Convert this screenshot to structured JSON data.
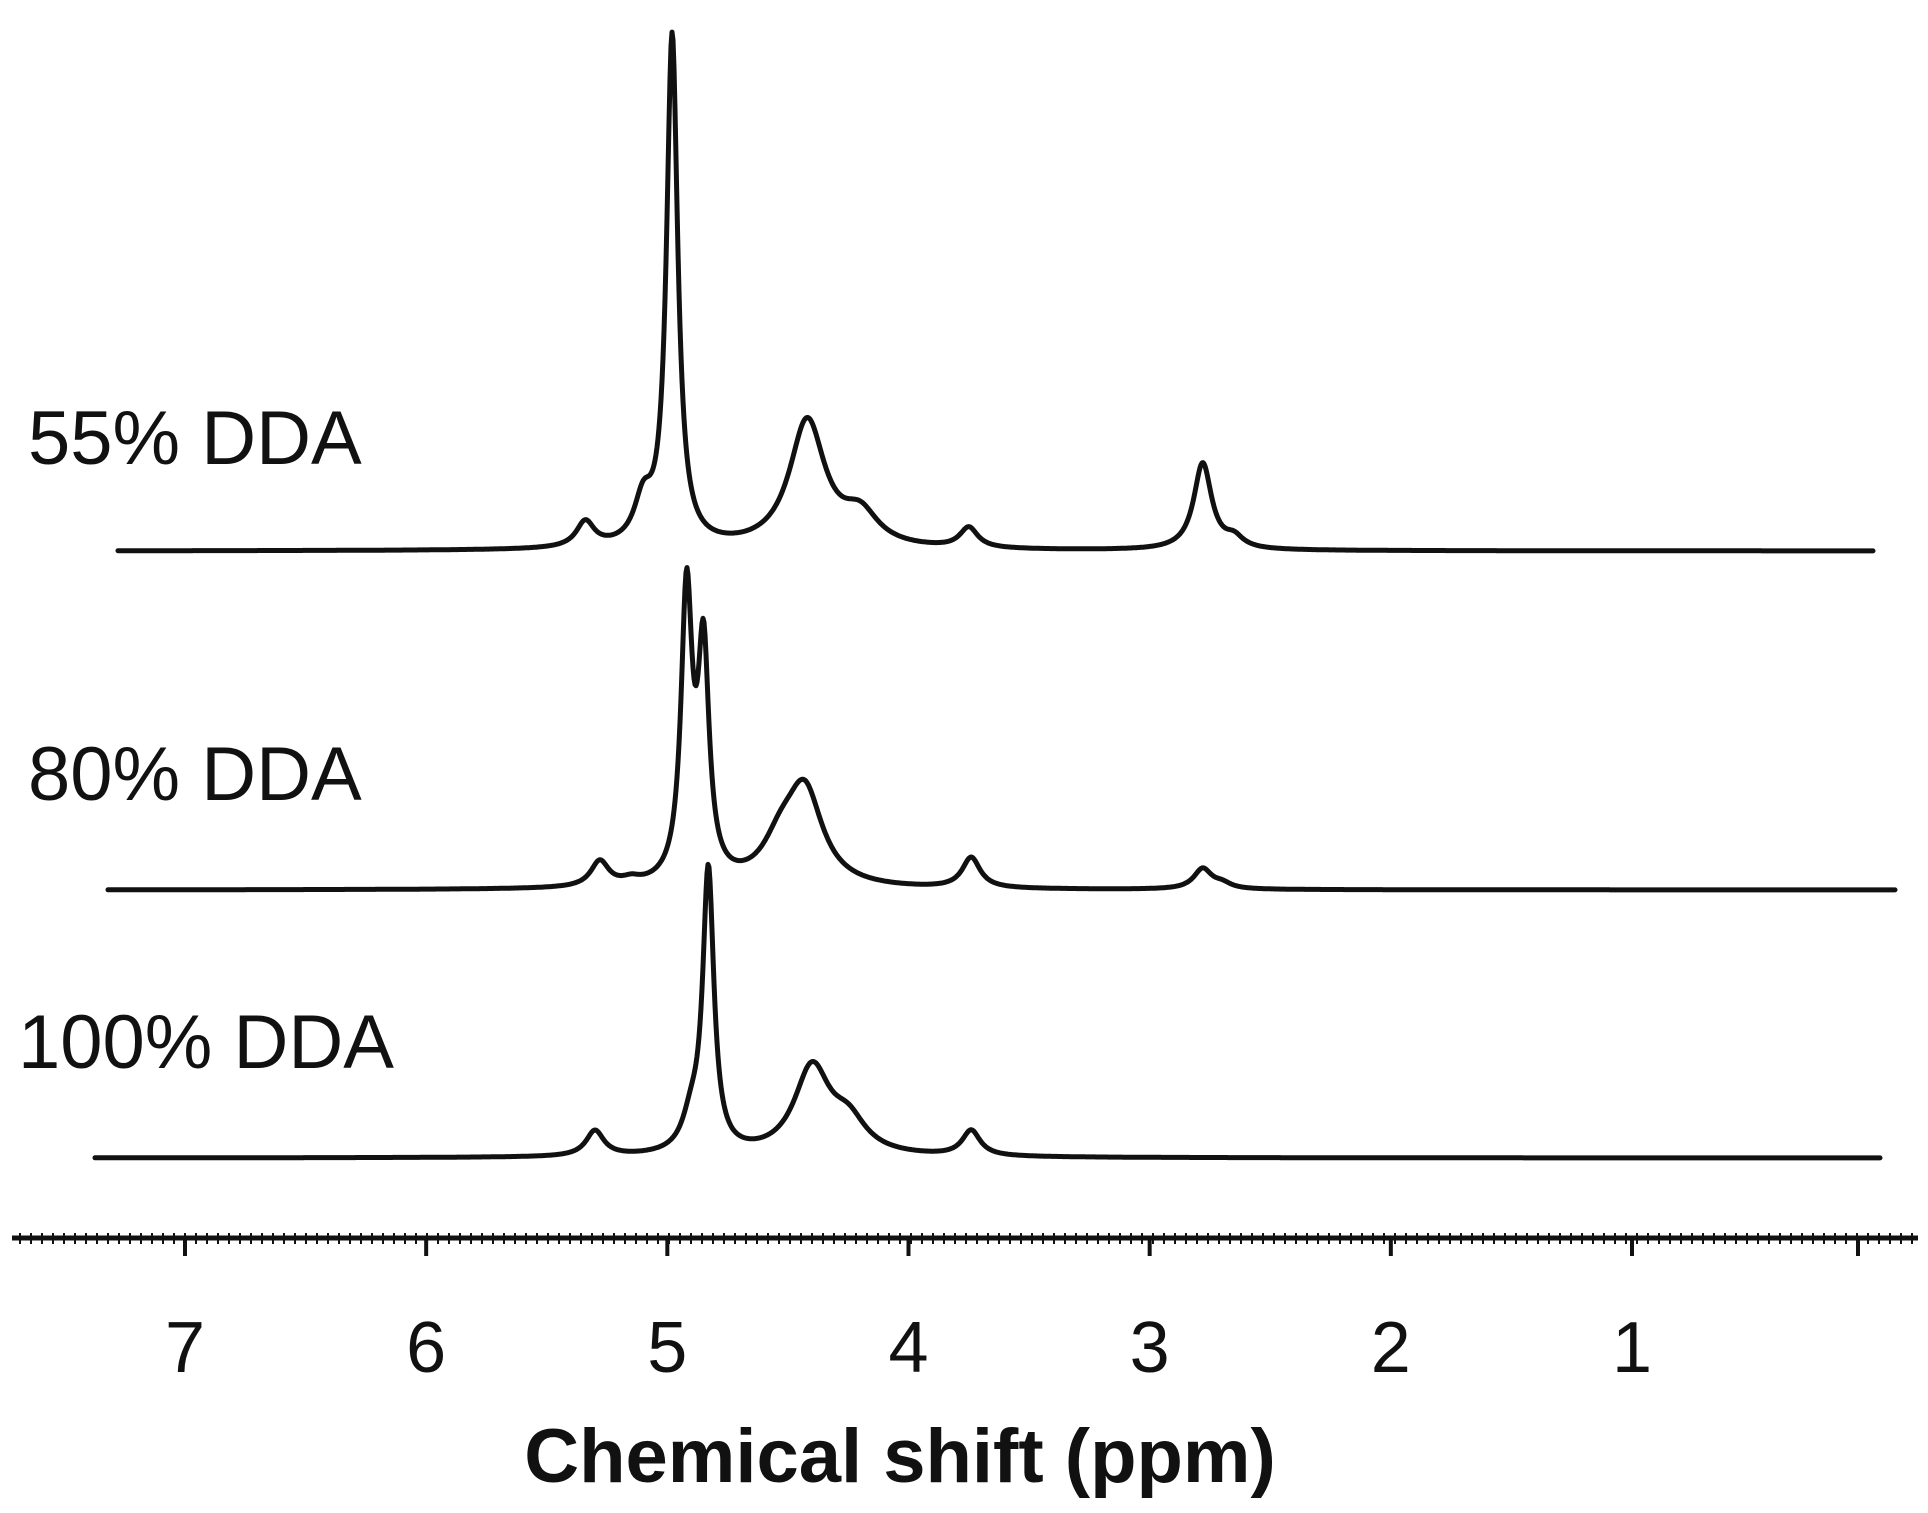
{
  "chart_data": {
    "type": "line",
    "xlabel": "Chemical shift (ppm)",
    "ylabel": "",
    "xlim": [
      7.4,
      -0.1
    ],
    "x_reversed": true,
    "ticks": [
      "7",
      "6",
      "5",
      "4",
      "3",
      "2",
      "1"
    ],
    "tick_values": [
      7,
      6,
      5,
      4,
      3,
      2,
      1
    ],
    "y_axis_shown": false,
    "grid": false,
    "series": [
      {
        "name": "55% DDA",
        "peaks": [
          {
            "ppm": 5.34,
            "intensity": 0.05
          },
          {
            "ppm": 5.1,
            "intensity": 0.08
          },
          {
            "ppm": 4.98,
            "intensity": 1.0
          },
          {
            "ppm": 4.42,
            "intensity": 0.25
          },
          {
            "ppm": 4.2,
            "intensity": 0.06
          },
          {
            "ppm": 3.75,
            "intensity": 0.04
          },
          {
            "ppm": 2.78,
            "intensity": 0.17
          },
          {
            "ppm": 2.65,
            "intensity": 0.02
          }
        ]
      },
      {
        "name": "80% DDA",
        "peaks": [
          {
            "ppm": 5.28,
            "intensity": 0.05
          },
          {
            "ppm": 5.15,
            "intensity": 0.01
          },
          {
            "ppm": 4.92,
            "intensity": 0.56
          },
          {
            "ppm": 4.85,
            "intensity": 0.44
          },
          {
            "ppm": 4.53,
            "intensity": 0.07
          },
          {
            "ppm": 4.43,
            "intensity": 0.18
          },
          {
            "ppm": 3.74,
            "intensity": 0.06
          },
          {
            "ppm": 2.78,
            "intensity": 0.04
          },
          {
            "ppm": 2.7,
            "intensity": 0.01
          }
        ]
      },
      {
        "name": "100% DDA",
        "peaks": [
          {
            "ppm": 5.3,
            "intensity": 0.05
          },
          {
            "ppm": 4.9,
            "intensity": 0.06
          },
          {
            "ppm": 4.83,
            "intensity": 0.55
          },
          {
            "ppm": 4.4,
            "intensity": 0.17
          },
          {
            "ppm": 4.25,
            "intensity": 0.06
          },
          {
            "ppm": 3.74,
            "intensity": 0.05
          }
        ]
      }
    ]
  }
}
